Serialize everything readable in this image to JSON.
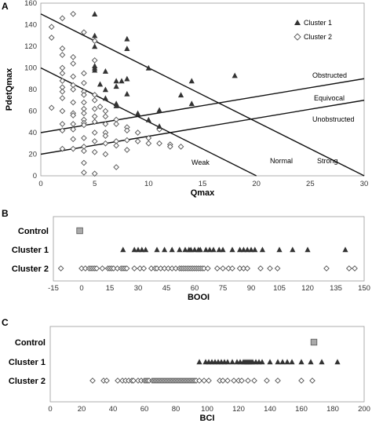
{
  "chart_data": [
    {
      "type": "scatter",
      "panel": "A",
      "xlabel": "Qmax",
      "ylabel": "PdetQmax",
      "xlim": [
        0,
        30
      ],
      "ylim": [
        0,
        160
      ],
      "xticks": [
        "0",
        "5",
        "10",
        "15",
        "20",
        "25",
        "30"
      ],
      "yticks": [
        "0",
        "20",
        "40",
        "60",
        "80",
        "100",
        "120",
        "140",
        "160"
      ],
      "legend": [
        "Cluster 1",
        "Cluster 2"
      ],
      "legend_position": "top-right",
      "lines": [
        {
          "label": "Obstructed",
          "x": [
            0,
            30
          ],
          "y": [
            40,
            90
          ]
        },
        {
          "label": "Equivocal",
          "x": [
            0,
            30
          ],
          "y": [
            20,
            70
          ]
        },
        {
          "label": "Unobstructed",
          "x": [
            0,
            30
          ],
          "y": [
            20,
            70
          ]
        },
        {
          "label": "Weak",
          "x": [
            0,
            20
          ],
          "y": [
            100,
            0
          ]
        },
        {
          "label": "Normal",
          "x": [
            0,
            20
          ],
          "y": [
            100,
            0
          ]
        },
        {
          "label": "Strong",
          "x": [
            0,
            30
          ],
          "y": [
            150,
            0
          ]
        }
      ],
      "annotations": [
        "Obstructed",
        "Equivocal",
        "Unobstructed",
        "Weak",
        "Normal",
        "Strong"
      ],
      "series": [
        {
          "name": "Cluster 1",
          "marker": "triangle",
          "color": "#333333",
          "points": [
            [
              5,
              150
            ],
            [
              5,
              130
            ],
            [
              5,
              120
            ],
            [
              5,
              102
            ],
            [
              5,
              100
            ],
            [
              5,
              98
            ],
            [
              5.5,
              85
            ],
            [
              6,
              97
            ],
            [
              6,
              80
            ],
            [
              6,
              72
            ],
            [
              7,
              88
            ],
            [
              7,
              83
            ],
            [
              7,
              67
            ],
            [
              7,
              65
            ],
            [
              7.5,
              88
            ],
            [
              8,
              127
            ],
            [
              8,
              118
            ],
            [
              8,
              90
            ],
            [
              8,
              76
            ],
            [
              9,
              58
            ],
            [
              10,
              100
            ],
            [
              10,
              52
            ],
            [
              11,
              61
            ],
            [
              11,
              46
            ],
            [
              13,
              75
            ],
            [
              14,
              88
            ],
            [
              14,
              67
            ],
            [
              18,
              93
            ]
          ]
        },
        {
          "name": "Cluster 2",
          "marker": "diamond",
          "color": "#555555",
          "points": [
            [
              1,
              138
            ],
            [
              1,
              128
            ],
            [
              1,
              63
            ],
            [
              2,
              146
            ],
            [
              2,
              118
            ],
            [
              2,
              112
            ],
            [
              2,
              100
            ],
            [
              2,
              95
            ],
            [
              2,
              88
            ],
            [
              2,
              82
            ],
            [
              2,
              78
            ],
            [
              2,
              72
            ],
            [
              2,
              60
            ],
            [
              2,
              48
            ],
            [
              2,
              42
            ],
            [
              2,
              25
            ],
            [
              3,
              150
            ],
            [
              3,
              110
            ],
            [
              3,
              104
            ],
            [
              3,
              92
            ],
            [
              3,
              84
            ],
            [
              3,
              80
            ],
            [
              3,
              68
            ],
            [
              3,
              58
            ],
            [
              3,
              56
            ],
            [
              3,
              48
            ],
            [
              3,
              43
            ],
            [
              3,
              34
            ],
            [
              3,
              25
            ],
            [
              4,
              133
            ],
            [
              4,
              95
            ],
            [
              4,
              86
            ],
            [
              4,
              78
            ],
            [
              4,
              75
            ],
            [
              4,
              68
            ],
            [
              4,
              62
            ],
            [
              4,
              58
            ],
            [
              4,
              52
            ],
            [
              4,
              49
            ],
            [
              4,
              47
            ],
            [
              4,
              35
            ],
            [
              4,
              27
            ],
            [
              4,
              23
            ],
            [
              4,
              12
            ],
            [
              4,
              3
            ],
            [
              5,
              125
            ],
            [
              5,
              107
            ],
            [
              5,
              75
            ],
            [
              5,
              70
            ],
            [
              5,
              62
            ],
            [
              5,
              55
            ],
            [
              5,
              50
            ],
            [
              5,
              40
            ],
            [
              5,
              32
            ],
            [
              5,
              22
            ],
            [
              5,
              2
            ],
            [
              5.5,
              64
            ],
            [
              6,
              60
            ],
            [
              6,
              55
            ],
            [
              6,
              48
            ],
            [
              6,
              40
            ],
            [
              6,
              37
            ],
            [
              6,
              30
            ],
            [
              6,
              20
            ],
            [
              7,
              52
            ],
            [
              7,
              48
            ],
            [
              7,
              32
            ],
            [
              7,
              28
            ],
            [
              7,
              8
            ],
            [
              8,
              45
            ],
            [
              8,
              42
            ],
            [
              8,
              33
            ],
            [
              8,
              24
            ],
            [
              9,
              40
            ],
            [
              9,
              32
            ],
            [
              10,
              35
            ],
            [
              10,
              30
            ],
            [
              11,
              43
            ],
            [
              11,
              30
            ],
            [
              12,
              29
            ],
            [
              12,
              27
            ],
            [
              13,
              27
            ]
          ]
        }
      ]
    },
    {
      "type": "scatter",
      "panel": "B",
      "xlabel": "BOOI",
      "xlim": [
        -15,
        150
      ],
      "xticks": [
        "-15",
        "0",
        "15",
        "30",
        "45",
        "60",
        "75",
        "90",
        "105",
        "120",
        "135",
        "150"
      ],
      "rows": [
        "Control",
        "Cluster 1",
        "Cluster 2"
      ],
      "series": [
        {
          "name": "Control",
          "marker": "square",
          "color": "#aaaaaa",
          "values": [
            -1
          ]
        },
        {
          "name": "Cluster 1",
          "marker": "triangle",
          "color": "#333333",
          "values": [
            22,
            28,
            30,
            32,
            34,
            40,
            44,
            48,
            52,
            55,
            57,
            58,
            60,
            62,
            63,
            66,
            68,
            70,
            73,
            75,
            80,
            84,
            86,
            88,
            90,
            92,
            96,
            105,
            112,
            120,
            140
          ]
        },
        {
          "name": "Cluster 2",
          "marker": "diamond",
          "color": "#555555",
          "values": [
            -11,
            0,
            2,
            4,
            5,
            6,
            7,
            8,
            11,
            14,
            15,
            16,
            17,
            19,
            21,
            22,
            23,
            24,
            28,
            31,
            33,
            37,
            39,
            40,
            42,
            44,
            46,
            48,
            50,
            52,
            53,
            54,
            55,
            56,
            57,
            58,
            59,
            60,
            61,
            62,
            63,
            64,
            65,
            67,
            72,
            75,
            78,
            80,
            84,
            86,
            88,
            95,
            100,
            104,
            130,
            142,
            145
          ]
        }
      ]
    },
    {
      "type": "scatter",
      "panel": "C",
      "xlabel": "BCI",
      "xlim": [
        0,
        200
      ],
      "xticks": [
        "0",
        "20",
        "40",
        "60",
        "80",
        "100",
        "120",
        "140",
        "160",
        "180",
        "200"
      ],
      "rows": [
        "Control",
        "Cluster 1",
        "Cluster 2"
      ],
      "series": [
        {
          "name": "Control",
          "marker": "square",
          "color": "#aaaaaa",
          "values": [
            168
          ]
        },
        {
          "name": "Cluster 1",
          "marker": "triangle",
          "color": "#333333",
          "values": [
            95,
            99,
            101,
            103,
            105,
            107,
            109,
            111,
            113,
            116,
            119,
            121,
            123,
            124,
            125,
            126,
            127,
            128,
            129,
            131,
            133,
            135,
            140,
            145,
            148,
            151,
            154,
            160,
            166,
            173,
            183
          ]
        },
        {
          "name": "Cluster 2",
          "marker": "diamond",
          "color": "#555555",
          "values": [
            27,
            34,
            36,
            43,
            46,
            48,
            50,
            52,
            53,
            56,
            58,
            60,
            61,
            62,
            63,
            65,
            66,
            67,
            68,
            69,
            70,
            71,
            72,
            73,
            74,
            75,
            76,
            77,
            78,
            79,
            80,
            81,
            82,
            83,
            84,
            85,
            86,
            87,
            88,
            89,
            90,
            91,
            92,
            93,
            95,
            98,
            101,
            108,
            110,
            113,
            117,
            120,
            122,
            126,
            130,
            138,
            145,
            160,
            167
          ]
        }
      ]
    }
  ],
  "panels": {
    "a": {
      "letter": "A",
      "xlabel": "Qmax",
      "ylabel": "PdetQmax"
    },
    "b": {
      "letter": "B",
      "xlabel": "BOOI",
      "rows": [
        "Control",
        "Cluster 1",
        "Cluster 2"
      ]
    },
    "c": {
      "letter": "C",
      "xlabel": "BCI",
      "rows": [
        "Control",
        "Cluster 1",
        "Cluster 2"
      ]
    }
  },
  "legend": {
    "cluster1": "Cluster 1",
    "cluster2": "Cluster 2"
  },
  "annotations": {
    "obstructed": "Obstructed",
    "equivocal": "Equivocal",
    "unobstructed": "Unobstructed",
    "weak": "Weak",
    "normal": "Normal",
    "strong": "Strong"
  },
  "colors": {
    "cluster1": "#333333",
    "cluster2": "#555555",
    "control": "#aaaaaa",
    "axis": "#888888"
  }
}
